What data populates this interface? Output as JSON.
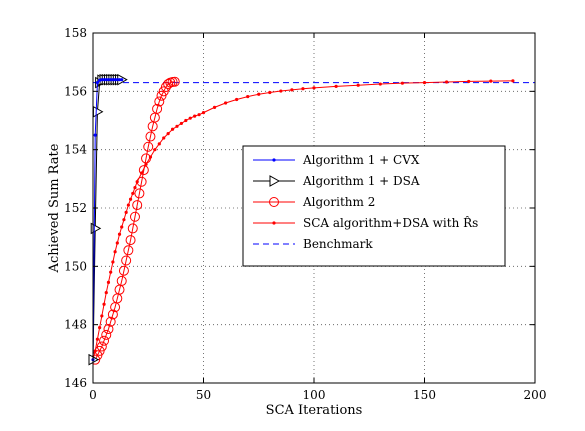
{
  "chart_data": {
    "type": "line",
    "xlabel": "SCA Iterations",
    "ylabel": "Achieved Sum Rate",
    "xlim": [
      0,
      200
    ],
    "ylim": [
      146,
      158
    ],
    "xticks": [
      "0",
      "50",
      "100",
      "150",
      "200"
    ],
    "yticks": [
      "146",
      "148",
      "150",
      "152",
      "154",
      "156",
      "158"
    ],
    "grid": true,
    "legend_position": "center-right",
    "series": [
      {
        "name": "Algorithm 1 + CVX",
        "color": "#0000ff",
        "marker": "dot",
        "x": [
          0,
          1,
          2,
          3,
          4,
          5,
          6,
          7,
          8,
          9,
          10,
          11,
          12,
          13
        ],
        "y": [
          146.8,
          154.5,
          156.3,
          156.38,
          156.4,
          156.4,
          156.4,
          156.4,
          156.4,
          156.4,
          156.4,
          156.4,
          156.4,
          156.4
        ]
      },
      {
        "name": "Algorithm 1 + DSA",
        "color": "#000000",
        "marker": "triangle-right",
        "x": [
          0,
          1,
          2,
          3,
          4,
          5,
          6,
          7,
          8,
          9,
          10,
          11,
          12,
          13
        ],
        "y": [
          146.8,
          151.3,
          155.3,
          156.3,
          156.38,
          156.4,
          156.4,
          156.4,
          156.4,
          156.4,
          156.4,
          156.4,
          156.4,
          156.4
        ]
      },
      {
        "name": "Algorithm 2",
        "color": "#ff0000",
        "marker": "circle",
        "x": [
          1,
          2,
          3,
          4,
          5,
          6,
          7,
          8,
          9,
          10,
          11,
          12,
          13,
          14,
          15,
          16,
          17,
          18,
          19,
          20,
          21,
          22,
          23,
          24,
          25,
          26,
          27,
          28,
          29,
          30,
          31,
          32,
          33,
          34,
          35,
          36,
          37
        ],
        "y": [
          146.8,
          146.95,
          147.1,
          147.25,
          147.45,
          147.65,
          147.85,
          148.1,
          148.35,
          148.6,
          148.9,
          149.2,
          149.5,
          149.85,
          150.2,
          150.55,
          150.9,
          151.3,
          151.7,
          152.1,
          152.5,
          152.9,
          153.3,
          153.7,
          154.1,
          154.45,
          154.8,
          155.1,
          155.4,
          155.65,
          155.85,
          156.0,
          156.15,
          156.25,
          156.3,
          156.32,
          156.33
        ]
      },
      {
        "name": "SCA algorithm+DSA with R̂s",
        "color": "#ff0000",
        "marker": "dot",
        "x": [
          0,
          1,
          2,
          3,
          4,
          5,
          6,
          7,
          8,
          9,
          10,
          11,
          12,
          13,
          14,
          15,
          16,
          17,
          18,
          19,
          20,
          22,
          24,
          26,
          28,
          30,
          32,
          34,
          36,
          38,
          40,
          42,
          44,
          46,
          48,
          50,
          55,
          60,
          65,
          70,
          75,
          80,
          85,
          90,
          95,
          100,
          110,
          120,
          130,
          140,
          150,
          160,
          170,
          180,
          190
        ],
        "y": [
          146.8,
          147.1,
          147.5,
          147.9,
          148.3,
          148.7,
          149.1,
          149.45,
          149.8,
          150.15,
          150.5,
          150.8,
          151.1,
          151.35,
          151.6,
          151.85,
          152.1,
          152.3,
          152.5,
          152.7,
          152.9,
          153.2,
          153.5,
          153.75,
          154.0,
          154.2,
          154.4,
          154.55,
          154.7,
          154.8,
          154.9,
          155.0,
          155.08,
          155.15,
          155.2,
          155.27,
          155.45,
          155.6,
          155.72,
          155.82,
          155.9,
          155.96,
          156.01,
          156.05,
          156.09,
          156.12,
          156.17,
          156.21,
          156.25,
          156.28,
          156.3,
          156.32,
          156.34,
          156.35,
          156.36
        ]
      },
      {
        "name": "Benchmark",
        "color": "#0000ff",
        "marker": "none",
        "dashed": true,
        "x": [
          0,
          200
        ],
        "y": [
          156.3,
          156.3
        ]
      }
    ]
  }
}
